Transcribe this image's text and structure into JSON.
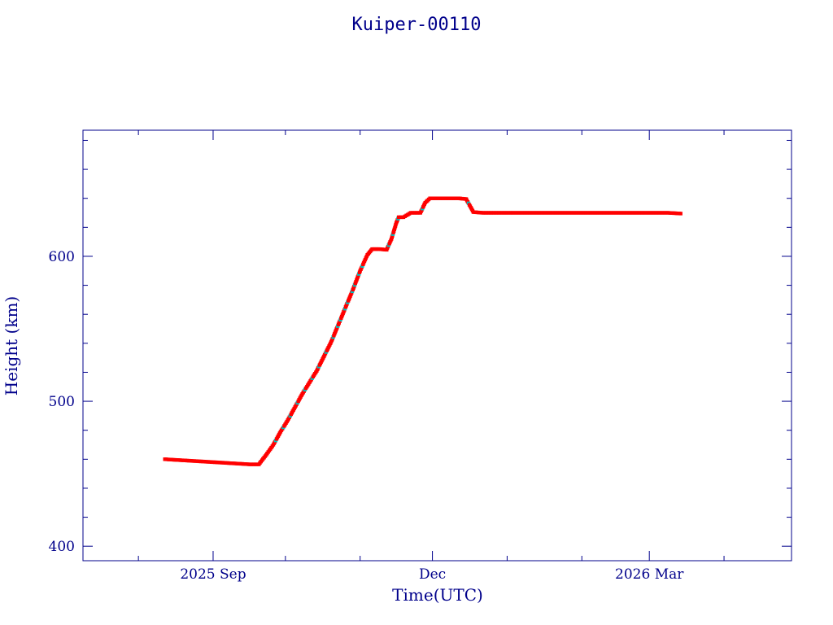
{
  "chart_data": {
    "type": "scatter",
    "title": "Kuiper-00110",
    "xlabel": "Time(UTC)",
    "ylabel": "Height (km)",
    "xlim": [
      "2025-07-09",
      "2026-04-29"
    ],
    "ylim": [
      390,
      687
    ],
    "y_ticks": [
      400,
      500,
      600
    ],
    "x_tick_labels": [
      {
        "date": "2025-09-01",
        "label": "2025 Sep"
      },
      {
        "date": "2025-12-01",
        "label": "Dec"
      },
      {
        "date": "2026-03-01",
        "label": "2026 Mar"
      }
    ],
    "colors": {
      "axes": "#00008b",
      "points": "#ff0000",
      "alt_points": "#00c0c0"
    },
    "series": [
      {
        "points": [
          [
            "2025-08-12",
            460
          ],
          [
            "2025-08-17",
            459.5
          ],
          [
            "2025-08-22",
            459
          ],
          [
            "2025-08-27",
            458.5
          ],
          [
            "2025-09-01",
            458
          ],
          [
            "2025-09-06",
            457.5
          ],
          [
            "2025-09-11",
            457
          ],
          [
            "2025-09-16",
            456.5
          ],
          [
            "2025-09-20",
            456.5
          ],
          [
            "2025-09-23",
            463
          ],
          [
            "2025-09-26",
            470
          ],
          [
            "2025-09-29",
            479
          ],
          [
            "2025-10-02",
            487
          ],
          [
            "2025-10-05",
            496
          ],
          [
            "2025-10-08",
            505
          ],
          [
            "2025-10-11",
            513
          ],
          [
            "2025-10-14",
            521
          ],
          [
            "2025-10-17",
            531
          ],
          [
            "2025-10-20",
            541
          ],
          [
            "2025-10-23",
            553
          ],
          [
            "2025-10-26",
            565
          ],
          [
            "2025-10-29",
            577
          ],
          [
            "2025-11-01",
            590
          ],
          [
            "2025-11-04",
            601
          ],
          [
            "2025-11-06",
            605
          ],
          [
            "2025-11-09",
            605
          ],
          [
            "2025-11-12",
            604.5
          ],
          [
            "2025-11-14",
            612
          ],
          [
            "2025-11-16",
            623
          ],
          [
            "2025-11-17",
            627
          ],
          [
            "2025-11-19",
            627
          ],
          [
            "2025-11-22",
            630
          ],
          [
            "2025-11-26",
            630
          ],
          [
            "2025-11-28",
            637
          ],
          [
            "2025-11-30",
            640
          ],
          [
            "2025-12-04",
            640
          ],
          [
            "2025-12-08",
            640
          ],
          [
            "2025-12-12",
            640
          ],
          [
            "2025-12-15",
            639.5
          ],
          [
            "2025-12-18",
            630.5
          ],
          [
            "2025-12-22",
            630
          ],
          [
            "2025-12-28",
            630
          ],
          [
            "2026-01-04",
            630
          ],
          [
            "2026-01-12",
            630
          ],
          [
            "2026-01-20",
            630
          ],
          [
            "2026-01-28",
            630
          ],
          [
            "2026-02-05",
            630
          ],
          [
            "2026-02-13",
            630
          ],
          [
            "2026-02-21",
            630
          ],
          [
            "2026-03-01",
            630
          ],
          [
            "2026-03-09",
            630
          ],
          [
            "2026-03-14",
            629.5
          ]
        ]
      }
    ]
  }
}
